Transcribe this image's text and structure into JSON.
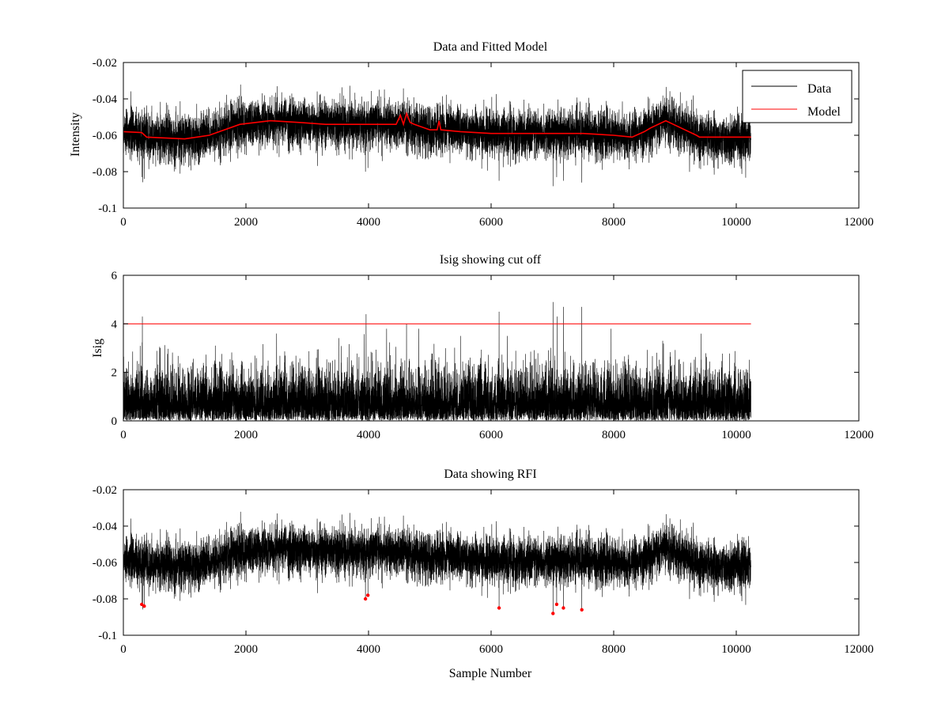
{
  "figure": {
    "colors": {
      "data": "#000000",
      "model": "#ff0000",
      "threshold": "#ff0000",
      "rfi": "#ff0000",
      "axes": "#000000",
      "background": "#ffffff"
    }
  },
  "chart_data": [
    {
      "type": "line",
      "title": "Data and Fitted Model",
      "xlabel": "",
      "ylabel": "Intensity",
      "xlim": [
        0,
        12000
      ],
      "ylim": [
        -0.1,
        -0.02
      ],
      "y_reversed": true,
      "xticks": [
        0,
        2000,
        4000,
        6000,
        8000,
        10000,
        12000
      ],
      "xtick_labels": [
        "0",
        "2000",
        "4000",
        "6000",
        "8000",
        "10000",
        "12000"
      ],
      "yticks": [
        -0.02,
        -0.04,
        -0.06,
        -0.08,
        -0.1
      ],
      "ytick_labels": [
        "-0.02",
        "-0.04",
        "-0.06",
        "-0.08",
        "-0.1"
      ],
      "legend": {
        "position": "top-right",
        "entries": [
          "Data",
          "Model"
        ]
      },
      "series": [
        {
          "name": "Data",
          "n_samples": 10240,
          "noise_sd": 0.0065,
          "baseline": {
            "x": [
              0,
              400,
              1000,
              1400,
              1900,
              2400,
              2900,
              3500,
              4000,
              4500,
              5000,
              5500,
              6000,
              6600,
              7000,
              7500,
              8000,
              8300,
              8600,
              8850,
              9100,
              9400,
              10240
            ],
            "y": [
              -0.058,
              -0.061,
              -0.062,
              -0.06,
              -0.054,
              -0.052,
              -0.053,
              -0.054,
              -0.054,
              -0.054,
              -0.057,
              -0.058,
              -0.059,
              -0.059,
              -0.059,
              -0.059,
              -0.06,
              -0.061,
              -0.056,
              -0.052,
              -0.056,
              -0.061,
              -0.062
            ]
          }
        },
        {
          "name": "Model",
          "x": [
            0,
            300,
            380,
            1000,
            1400,
            1900,
            2400,
            2900,
            3300,
            3500,
            4000,
            4450,
            4520,
            4570,
            4620,
            4680,
            4750,
            5000,
            5120,
            5150,
            5180,
            5500,
            6000,
            6600,
            7000,
            7500,
            8000,
            8300,
            8500,
            8600,
            8850,
            9100,
            9350,
            9400,
            10240
          ],
          "y": [
            -0.058,
            -0.0585,
            -0.061,
            -0.062,
            -0.06,
            -0.054,
            -0.052,
            -0.053,
            -0.054,
            -0.054,
            -0.054,
            -0.054,
            -0.049,
            -0.054,
            -0.048,
            -0.053,
            -0.054,
            -0.057,
            -0.057,
            -0.052,
            -0.057,
            -0.058,
            -0.059,
            -0.059,
            -0.059,
            -0.059,
            -0.06,
            -0.061,
            -0.058,
            -0.056,
            -0.052,
            -0.056,
            -0.06,
            -0.061,
            -0.061
          ]
        }
      ]
    },
    {
      "type": "line",
      "title": "Isig showing cut off",
      "xlabel": "",
      "ylabel": "Isig",
      "xlim": [
        0,
        12000
      ],
      "ylim": [
        0,
        6
      ],
      "xticks": [
        0,
        2000,
        4000,
        6000,
        8000,
        10000,
        12000
      ],
      "xtick_labels": [
        "0",
        "2000",
        "4000",
        "6000",
        "8000",
        "10000",
        "12000"
      ],
      "yticks": [
        0,
        2,
        4,
        6
      ],
      "ytick_labels": [
        "0",
        "2",
        "4",
        "6"
      ],
      "series": [
        {
          "name": "Isig",
          "n_samples": 10240,
          "mean_abs": 0.8
        },
        {
          "name": "Cut off",
          "x": [
            0,
            10240
          ],
          "y": [
            4,
            4
          ]
        }
      ],
      "spikes": {
        "x": [
          310,
          3960,
          4620,
          6130,
          7010,
          7080,
          7180,
          7480,
          2500,
          1500,
          5500,
          8800
        ],
        "y": [
          4.3,
          4.4,
          4.0,
          4.5,
          4.9,
          4.3,
          4.7,
          4.7,
          3.6,
          3.1,
          3.5,
          3.3
        ]
      }
    },
    {
      "type": "line",
      "title": "Data showing RFI",
      "xlabel": "Sample Number",
      "ylabel": "",
      "xlim": [
        0,
        12000
      ],
      "ylim": [
        -0.1,
        -0.02
      ],
      "y_reversed": true,
      "xticks": [
        0,
        2000,
        4000,
        6000,
        8000,
        10000,
        12000
      ],
      "xtick_labels": [
        "0",
        "2000",
        "4000",
        "6000",
        "8000",
        "10000",
        "12000"
      ],
      "yticks": [
        -0.02,
        -0.04,
        -0.06,
        -0.08,
        -0.1
      ],
      "ytick_labels": [
        "-0.02",
        "-0.04",
        "-0.06",
        "-0.08",
        "-0.1"
      ],
      "series": [
        {
          "name": "Data",
          "same_as": "Data and Fitted Model"
        },
        {
          "name": "RFI",
          "marker": "dot",
          "x": [
            300,
            340,
            3950,
            3990,
            6130,
            7010,
            7070,
            7180,
            7480
          ],
          "y": [
            -0.083,
            -0.084,
            -0.08,
            -0.078,
            -0.085,
            -0.088,
            -0.083,
            -0.085,
            -0.086
          ]
        }
      ]
    }
  ]
}
